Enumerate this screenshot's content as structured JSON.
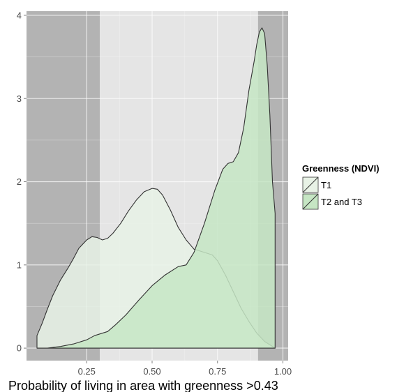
{
  "chart_data": {
    "type": "area",
    "title": "",
    "xlabel": "Probability of living in area with greenness >0.43",
    "ylabel": "",
    "xlim": [
      0.02,
      1.02
    ],
    "ylim": [
      -0.15,
      4.05
    ],
    "x_ticks": [
      0.25,
      0.5,
      0.75,
      1.0
    ],
    "x_tick_labels": [
      "0.25",
      "0.50",
      "0.75",
      "1.00"
    ],
    "y_ticks": [
      0,
      1,
      2,
      3,
      4
    ],
    "y_tick_labels": [
      "0",
      "1",
      "2",
      "3",
      "4"
    ],
    "grid": true,
    "legend_position": "right",
    "legend_title": "Greenness (NDVI)",
    "shaded_regions": [
      {
        "x": [
          0.02,
          0.3
        ],
        "color": "#b3b3b3"
      },
      {
        "x": [
          0.905,
          1.02
        ],
        "color": "#b3b3b3"
      }
    ],
    "panel_color": "#e5e5e5",
    "series": [
      {
        "name": "T1",
        "fill": "#e8f2e6",
        "x": [
          0.06,
          0.08,
          0.1,
          0.12,
          0.15,
          0.18,
          0.2,
          0.22,
          0.25,
          0.27,
          0.29,
          0.31,
          0.33,
          0.35,
          0.38,
          0.41,
          0.44,
          0.47,
          0.5,
          0.52,
          0.54,
          0.57,
          0.6,
          0.63,
          0.66,
          0.7,
          0.73,
          0.75,
          0.78,
          0.81,
          0.84,
          0.87,
          0.9,
          0.93,
          0.96,
          0.97
        ],
        "y": [
          0.15,
          0.3,
          0.47,
          0.63,
          0.82,
          0.97,
          1.08,
          1.2,
          1.3,
          1.34,
          1.33,
          1.3,
          1.32,
          1.38,
          1.5,
          1.65,
          1.78,
          1.88,
          1.92,
          1.91,
          1.84,
          1.66,
          1.45,
          1.3,
          1.19,
          1.15,
          1.12,
          1.05,
          0.88,
          0.68,
          0.48,
          0.32,
          0.18,
          0.08,
          0.02,
          0.0
        ]
      },
      {
        "name": "T2 and T3",
        "fill": "#c6e6c4",
        "x": [
          0.06,
          0.1,
          0.15,
          0.2,
          0.25,
          0.28,
          0.3,
          0.33,
          0.36,
          0.4,
          0.45,
          0.5,
          0.55,
          0.6,
          0.63,
          0.66,
          0.7,
          0.74,
          0.77,
          0.79,
          0.81,
          0.83,
          0.85,
          0.87,
          0.89,
          0.9,
          0.91,
          0.92,
          0.93,
          0.94,
          0.95,
          0.96,
          0.97
        ],
        "y": [
          0.0,
          0.0,
          0.02,
          0.05,
          0.1,
          0.15,
          0.17,
          0.2,
          0.28,
          0.4,
          0.58,
          0.75,
          0.88,
          0.98,
          1.0,
          1.15,
          1.5,
          1.9,
          2.15,
          2.22,
          2.24,
          2.35,
          2.65,
          3.1,
          3.45,
          3.65,
          3.8,
          3.85,
          3.78,
          3.4,
          2.8,
          2.0,
          1.62
        ]
      }
    ]
  }
}
